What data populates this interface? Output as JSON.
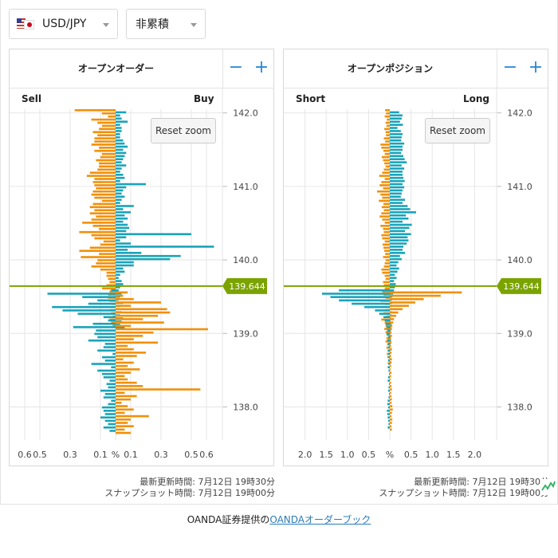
{
  "controls": {
    "pair_label": "USD/JPY",
    "mode_label": "非累積"
  },
  "panels": [
    {
      "title": "オープンオーダー",
      "left_label": "Sell",
      "right_label": "Buy",
      "minus": "−",
      "plus": "+",
      "zoom_label": "Reset zoom",
      "updated": "最新更新時間: 7月12日 19時30分",
      "snapshot": "スナップショット時間: 7月12日 19時00分"
    },
    {
      "title": "オープンポジション",
      "left_label": "Short",
      "right_label": "Long",
      "minus": "−",
      "plus": "+",
      "zoom_label": "Reset zoom",
      "updated": "最新更新時間: 7月12日 19時30分",
      "snapshot": "スナップショット時間: 7月12日 19時00分"
    }
  ],
  "footer": {
    "prefix": "OANDA証券提供の",
    "link": "OANDAオーダーブック"
  },
  "colors": {
    "sell": "#f0900a",
    "buy": "#1aa3b8",
    "price_line": "#7ba300",
    "price_tag": "#7ba300",
    "grid": "#e6e6e6",
    "accent": "#2b8ad6"
  },
  "chart_data": [
    {
      "type": "bar",
      "orientation": "horizontal-diverging",
      "title": "オープンオーダー",
      "left_series": "Sell",
      "right_series": "Buy",
      "y_ticks": [
        "142.0",
        "141.0",
        "140.0",
        "139.0",
        "138.0"
      ],
      "y_tick_values": [
        142.0,
        141.0,
        140.0,
        139.0,
        138.0
      ],
      "x_ticks": [
        "0.6",
        "0.5",
        "0.3",
        "0.1",
        "%",
        "0.1",
        "0.3",
        "0.5",
        "0.6"
      ],
      "x_range": [
        -0.7,
        0.7
      ],
      "current_price": "139.644",
      "current_price_value": 139.644,
      "price_step": 0.05,
      "price_range": [
        137.55,
        142.05
      ],
      "prices_top_value": 142.05,
      "series": [
        {
          "name": "Sell",
          "values": [
            0.27,
            0.09,
            0.05,
            0.16,
            0.12,
            0.09,
            0.11,
            0.15,
            0.12,
            0.14,
            0.14,
            0.16,
            0.11,
            0.14,
            0.09,
            0.1,
            0.13,
            0.11,
            0.11,
            0.12,
            0.17,
            0.19,
            0.14,
            0.15,
            0.14,
            0.13,
            0.15,
            0.16,
            0.14,
            0.09,
            0.15,
            0.17,
            0.14,
            0.17,
            0.13,
            0.16,
            0.22,
            0.15,
            0.11,
            0.24,
            0.16,
            0.14,
            0.08,
            0.1,
            0.17,
            0.24,
            0.11,
            0.23,
            0.12,
            0.13,
            0.16,
            0.1,
            0.06,
            0.06,
            0.05,
            0.04,
            0.06,
            0.09,
            0.04,
            0.05,
            0.05,
            0.04,
            0.03,
            0.02,
            0.04,
            0.03,
            0.02,
            0.04,
            0.03,
            0.02
          ]
        },
        {
          "name": "Buy",
          "values": [
            0.07,
            0.03,
            0.04,
            0.08,
            0.03,
            0.04,
            0.04,
            0.03,
            0.03,
            0.05,
            0.06,
            0.08,
            0.05,
            0.07,
            0.06,
            0.05,
            0.04,
            0.07,
            0.04,
            0.03,
            0.05,
            0.06,
            0.03,
            0.2,
            0.07,
            0.05,
            0.04,
            0.06,
            0.04,
            0.03,
            0.12,
            0.05,
            0.1,
            0.06,
            0.08,
            0.05,
            0.08,
            0.09,
            0.07,
            0.5,
            0.07,
            0.03,
            0.1,
            0.65,
            0.08,
            0.17,
            0.43,
            0.36,
            0.12,
            0.12,
            0.05,
            0.06,
            0.03,
            0.02,
            0.04,
            0.05,
            0.03,
            0.02,
            0.04,
            0.03,
            0.02,
            0.05,
            0.03,
            0.02,
            0.04,
            0.03,
            0.05,
            0.04,
            0.03,
            0.06
          ]
        }
      ]
    },
    {
      "type": "bar",
      "orientation": "horizontal-diverging",
      "title": "オープンポジション",
      "left_series": "Short",
      "right_series": "Long",
      "y_ticks": [
        "142.0",
        "141.0",
        "140.0",
        "139.0",
        "138.0"
      ],
      "y_tick_values": [
        142.0,
        141.0,
        140.0,
        139.0,
        138.0
      ],
      "x_ticks": [
        "2.0",
        "1.5",
        "1.0",
        "0.5",
        "%",
        "0.5",
        "1.0",
        "1.5",
        "2.0"
      ],
      "x_range": [
        -2.5,
        2.5
      ],
      "current_price": "139.644",
      "current_price_value": 139.644,
      "price_step": 0.05,
      "price_range": [
        137.55,
        142.05
      ],
      "prices_top_value": 142.05,
      "series": [
        {
          "name": "Short",
          "values": [
            0.11,
            0.09,
            0.12,
            0.07,
            0.1,
            0.08,
            0.13,
            0.1,
            0.09,
            0.14,
            0.11,
            0.22,
            0.2,
            0.15,
            0.12,
            0.19,
            0.16,
            0.13,
            0.1,
            0.14,
            0.18,
            0.25,
            0.12,
            0.2,
            0.24,
            0.16,
            0.3,
            0.22,
            0.18,
            0.26,
            0.15,
            0.19,
            0.14,
            0.2,
            0.24,
            0.18,
            0.12,
            0.22,
            0.16,
            0.14,
            0.2,
            0.18,
            0.12,
            0.17,
            0.15,
            0.13,
            0.11,
            0.16,
            0.1,
            0.12,
            0.14,
            0.2,
            0.18,
            0.12,
            0.1,
            0.16,
            0.14,
            0.12,
            0.18,
            0.15,
            0.1,
            0.22,
            0.12,
            0.14,
            0.1,
            0.15,
            0.08,
            0.2,
            0.12,
            0.1,
            0.13,
            0.1,
            0.07,
            0.08,
            0.1,
            0.06,
            0.08,
            0.05,
            0.07,
            0.06,
            0.04,
            0.05
          ]
        },
        {
          "name": "Long",
          "values": [
            0.22,
            0.3,
            0.28,
            0.24,
            0.31,
            0.18,
            0.26,
            0.3,
            0.28,
            0.27,
            0.34,
            0.3,
            0.3,
            0.27,
            0.32,
            0.35,
            0.4,
            0.28,
            0.34,
            0.3,
            0.3,
            0.32,
            0.35,
            0.3,
            0.34,
            0.3,
            0.28,
            0.26,
            0.36,
            0.3,
            0.42,
            0.48,
            0.62,
            0.38,
            0.44,
            0.3,
            0.52,
            0.46,
            0.36,
            0.5,
            0.42,
            0.44,
            0.4,
            0.32,
            0.3,
            0.36,
            0.24,
            0.28,
            0.2,
            0.16,
            0.22,
            0.18,
            0.12,
            0.16,
            0.1,
            0.14,
            0.12,
            0.1,
            0.08,
            0.06,
            0.05,
            0.06,
            0.04,
            0.03,
            0.05,
            0.04,
            0.03,
            0.02,
            0.04,
            0.03,
            0.02,
            0.01,
            0.02,
            0.03,
            0.02,
            0.01,
            0.03,
            0.02,
            0.01,
            0.02,
            0.03,
            0.01
          ]
        }
      ],
      "lower_series": [
        {
          "name": "Short",
          "values": [
            1.2,
            1.6,
            1.4,
            1.2,
            0.9,
            0.6,
            0.35,
            0.25,
            0.15,
            0.12,
            0.1,
            0.08,
            0.06,
            0.08,
            0.04,
            0.06,
            0.05,
            0.03,
            0.05,
            0.04,
            0.03,
            0.04,
            0.03,
            0.05,
            0.03,
            0.02,
            0.04,
            0.05,
            0.02,
            0.03,
            0.04,
            0.02,
            0.03,
            0.05,
            0.06,
            0.04,
            0.07,
            0.06,
            0.05,
            0.04,
            0.03,
            0.05
          ]
        },
        {
          "name": "Long",
          "values": [
            1.7,
            1.2,
            0.8,
            0.6,
            0.45,
            0.3,
            0.2,
            0.15,
            0.1,
            0.08,
            0.06,
            0.05,
            0.04,
            0.05,
            0.03,
            0.04,
            0.03,
            0.05,
            0.04,
            0.03,
            0.05,
            0.04,
            0.03,
            0.02,
            0.04,
            0.03,
            0.02,
            0.03,
            0.04,
            0.05,
            0.03,
            0.04,
            0.05,
            0.04,
            0.06,
            0.07,
            0.05,
            0.04,
            0.06,
            0.05,
            0.04,
            0.05
          ]
        }
      ]
    }
  ]
}
